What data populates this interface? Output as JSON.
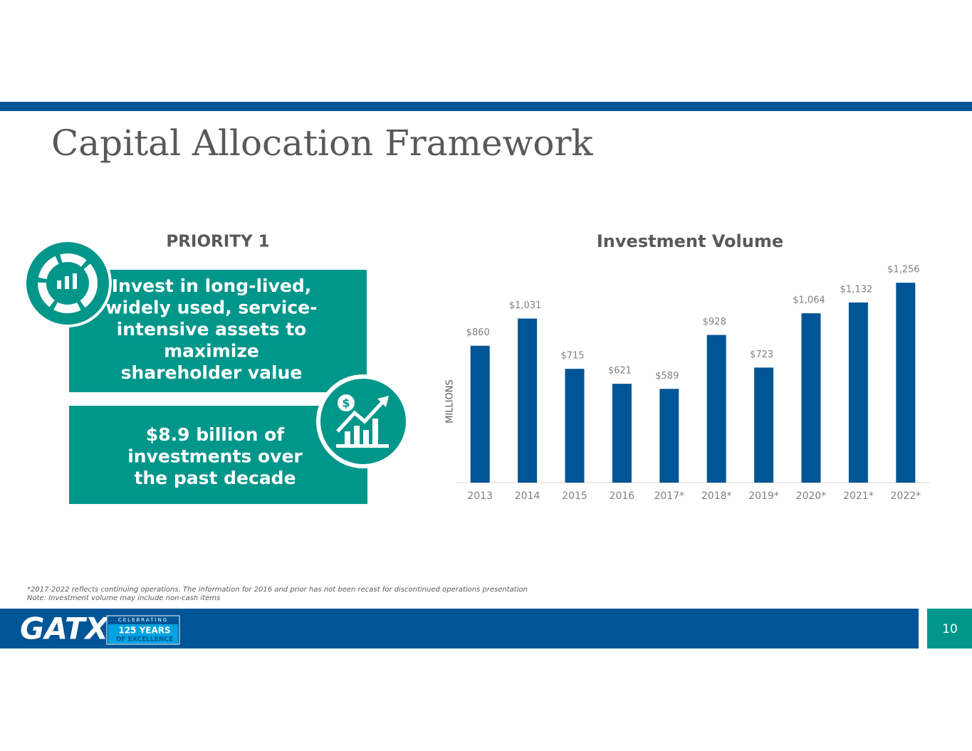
{
  "slide_title": "Capital Allocation Framework",
  "priority": "PRIORITY 1",
  "box1_lines": [
    "Invest in long-lived,",
    "widely used, service-",
    "intensive assets to",
    "maximize",
    "shareholder value"
  ],
  "box2_lines": [
    "$8.9 billion of",
    "investments over",
    "the past decade"
  ],
  "icon_symbol": "$",
  "footnotes": [
    "*2017-2022 reflects continuing operations. The information for 2016 and prior has not been recast for discontinued operations presentation",
    "Note: Investment volume may include non-cash items"
  ],
  "logo": {
    "name": "GATX",
    "celebrating": "CELEBRATING",
    "years": "125 YEARS",
    "excellence": "OF EXCELLENCE"
  },
  "page_number": "10",
  "chart_data": {
    "type": "bar",
    "title": "Investment Volume",
    "y_label": "MILLIONS",
    "categories": [
      "2013",
      "2014",
      "2015",
      "2016",
      "2017*",
      "2018*",
      "2019*",
      "2020*",
      "2021*",
      "2022*"
    ],
    "values": [
      860,
      1031,
      715,
      621,
      589,
      928,
      723,
      1064,
      1132,
      1256
    ],
    "value_labels": [
      "$860",
      "$1,031",
      "$715",
      "$621",
      "$589",
      "$928",
      "$723",
      "$1,064",
      "$1,132",
      "$1,256"
    ],
    "color": "#005596",
    "ylim": [
      0,
      1400
    ]
  }
}
